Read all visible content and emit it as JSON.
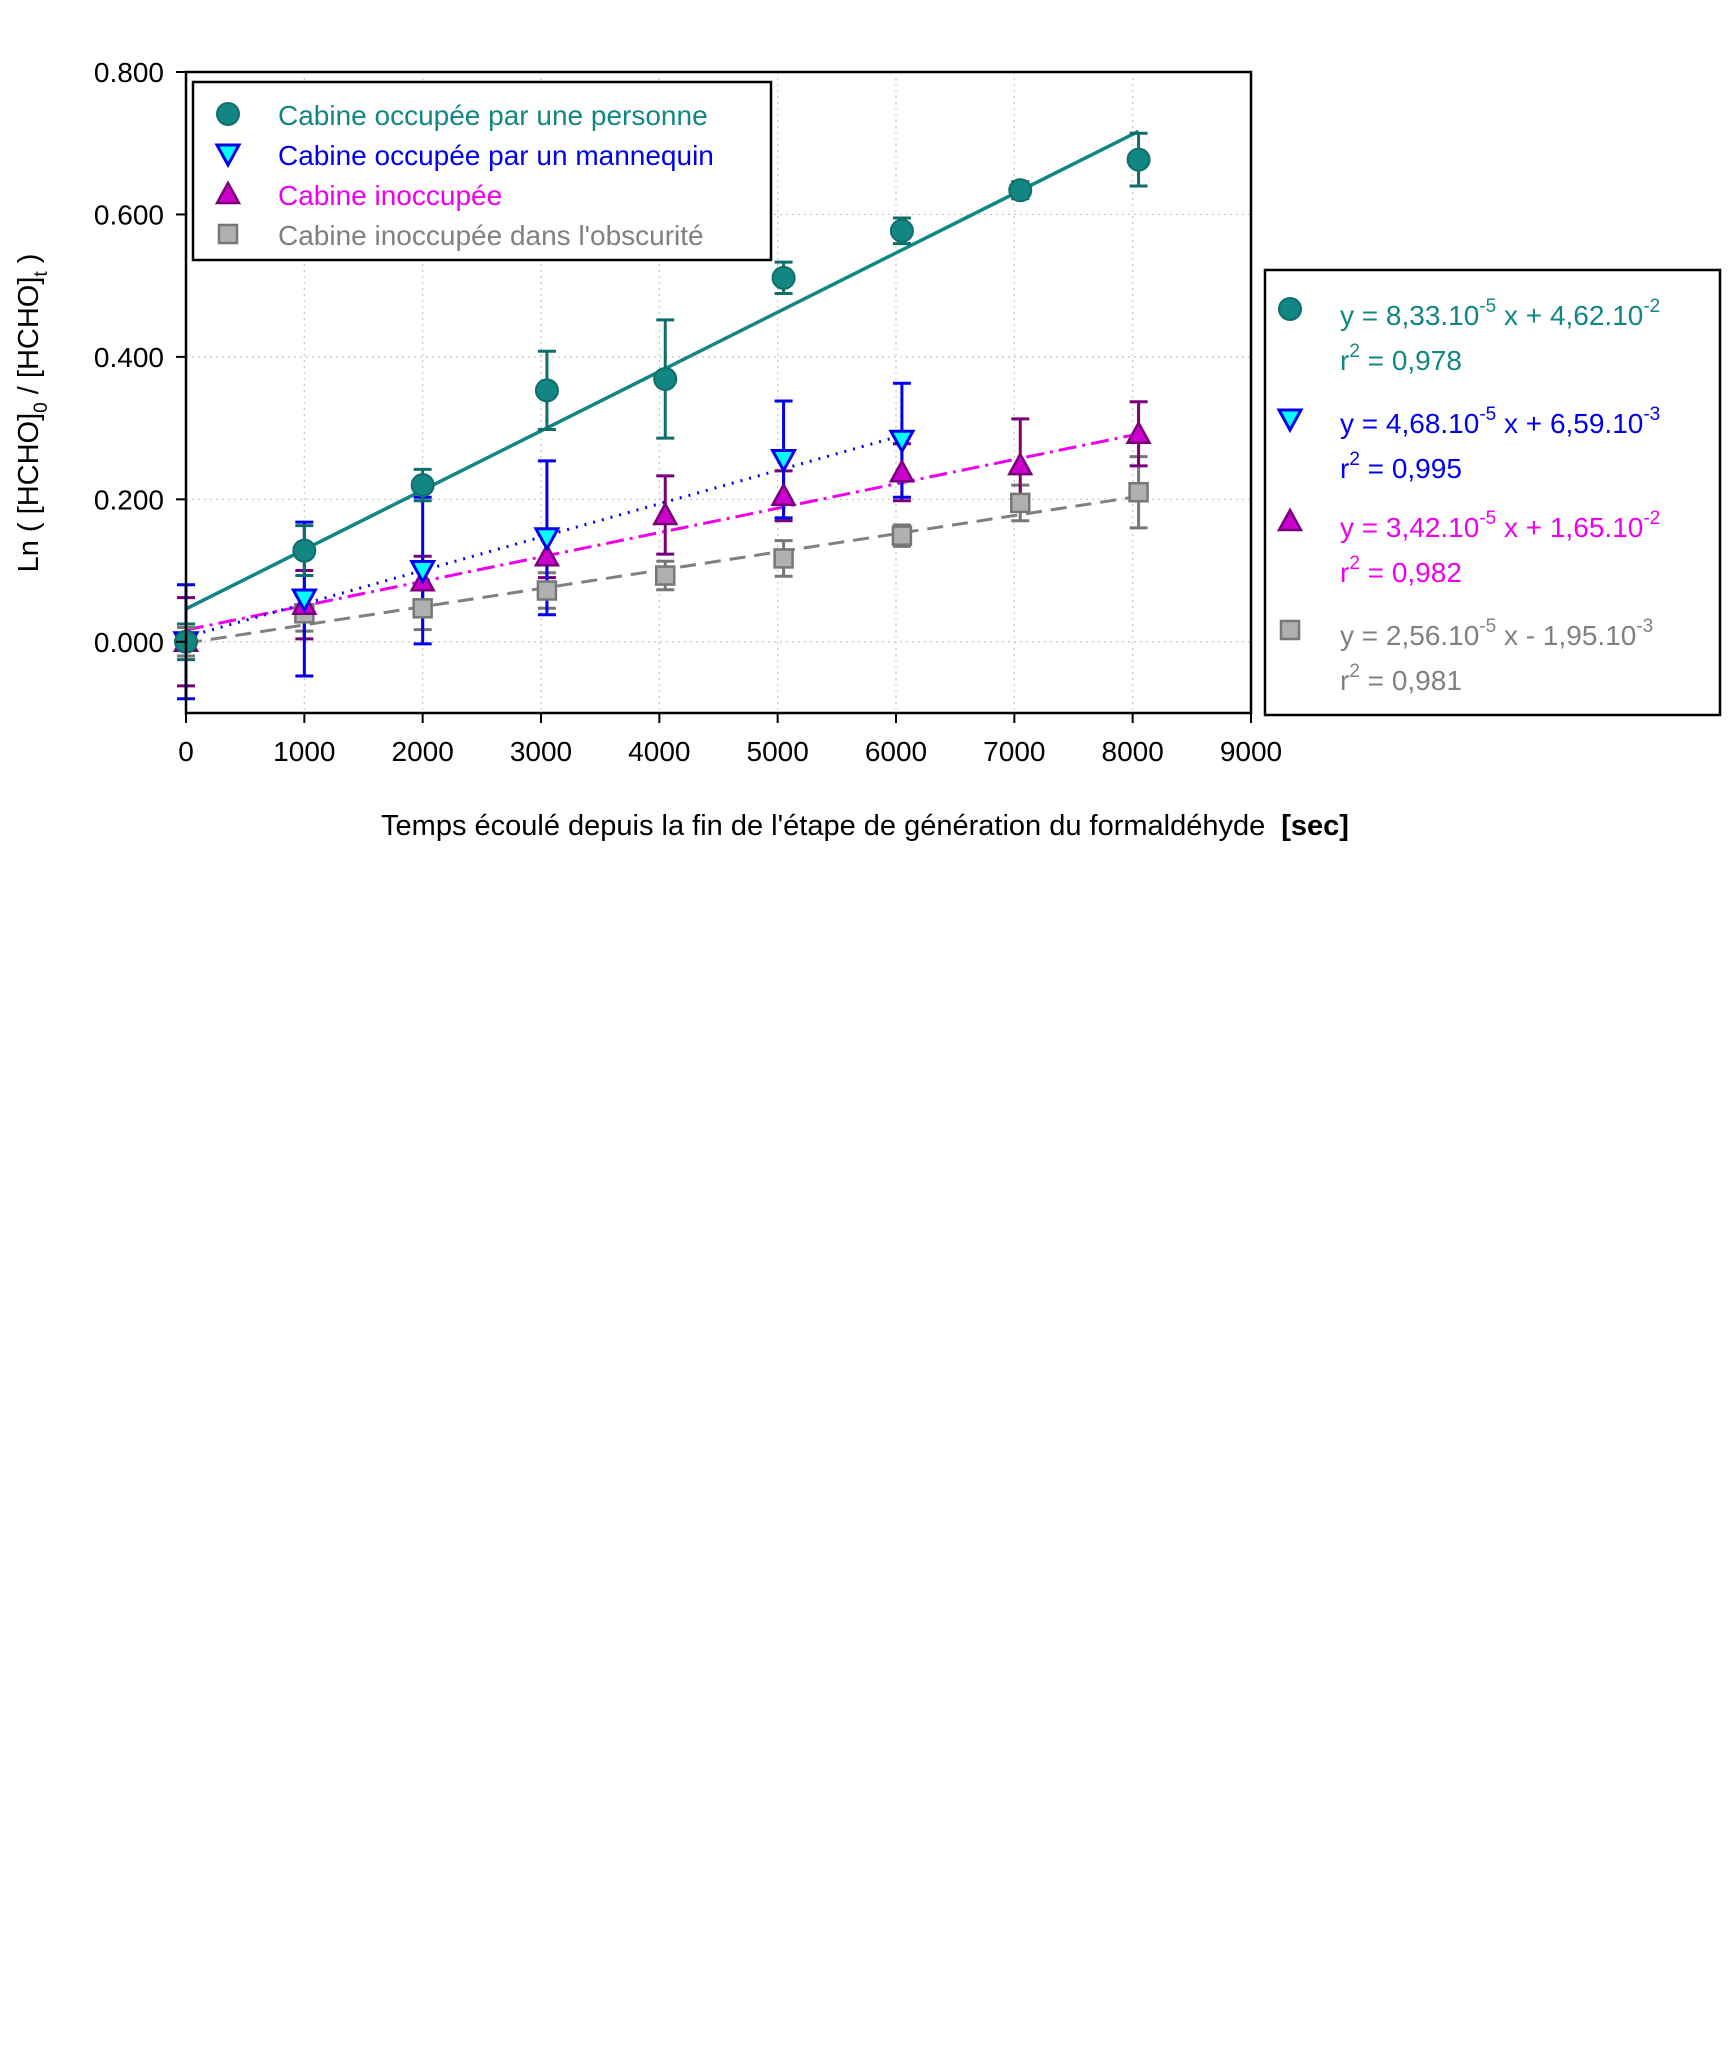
{
  "chart_data": {
    "type": "scatter",
    "xlabel": "Temps écoulé depuis la fin de l'étape de génération du formaldéhyde",
    "xlabel_unit": "[sec]",
    "ylabel_parts": [
      "Ln ( [HCHO]",
      "0",
      " / [HCHO]",
      "t",
      " )"
    ],
    "xlim": [
      0,
      9000
    ],
    "ylim": [
      -0.1,
      0.8
    ],
    "xticks": [
      "0",
      "1000",
      "2000",
      "3000",
      "4000",
      "5000",
      "6000",
      "7000",
      "8000",
      "9000"
    ],
    "yticks": [
      {
        "value": 0.0,
        "label": "0.000"
      },
      {
        "value": 0.2,
        "label": "0.200"
      },
      {
        "value": 0.4,
        "label": "0.400"
      },
      {
        "value": 0.6,
        "label": "0.600"
      },
      {
        "value": 0.8,
        "label": "0.800"
      }
    ],
    "grid": "dotted",
    "legend_position": "top-left",
    "series": [
      {
        "name": "Cabine occupée par une personne",
        "marker": "circle",
        "color": "#128683",
        "stroke": "#0f6e6b",
        "line_style": "solid",
        "x": [
          0,
          1000,
          2000,
          3050,
          4050,
          5050,
          6050,
          7050,
          8050
        ],
        "y": [
          0.0,
          0.128,
          0.22,
          0.353,
          0.369,
          0.511,
          0.577,
          0.634,
          0.677
        ],
        "err": [
          0.025,
          0.035,
          0.022,
          0.055,
          0.083,
          0.022,
          0.018,
          0.012,
          0.037
        ],
        "fit": {
          "slope": 8.33e-05,
          "intercept": 0.0462,
          "x_range": [
            0,
            8050
          ]
        },
        "equation": {
          "lead": "y = 8,33.10",
          "exp1": "-5",
          "mid": " x  + 4,62.10",
          "exp2": "-2",
          "r2_lead": "r",
          "r2_exp": "2",
          "r2_tail": " = 0,978"
        }
      },
      {
        "name": "Cabine occupée par un mannequin",
        "marker": "triangle-down",
        "color": "#00ffff",
        "stroke": "#0000ee",
        "line_style": "dotted",
        "x": [
          0,
          1000,
          2000,
          3050,
          5050,
          6050
        ],
        "y": [
          0.0,
          0.06,
          0.1,
          0.146,
          0.256,
          0.283
        ],
        "err": [
          0.08,
          0.108,
          0.103,
          0.108,
          0.082,
          0.08
        ],
        "fit": {
          "slope": 4.68e-05,
          "intercept": 0.00659,
          "x_range": [
            0,
            6050
          ]
        },
        "equation": {
          "lead": "y = 4,68.10",
          "exp1": "-5",
          "mid": " x  + 6,59.10",
          "exp2": "-3",
          "r2_lead": "r",
          "r2_exp": "2",
          "r2_tail": " = 0,995"
        }
      },
      {
        "name": "Cabine inoccupée",
        "marker": "triangle-up",
        "color": "#cc00cc",
        "stroke": "#7a007a",
        "line_style": "dash-dot",
        "x": [
          0,
          1000,
          2000,
          3050,
          4050,
          5050,
          6050,
          7050,
          8050
        ],
        "y": [
          0.0,
          0.052,
          0.085,
          0.12,
          0.178,
          0.205,
          0.238,
          0.248,
          0.292
        ],
        "err": [
          0.062,
          0.048,
          0.035,
          0.03,
          0.055,
          0.035,
          0.04,
          0.065,
          0.045
        ],
        "fit": {
          "slope": 3.42e-05,
          "intercept": 0.0165,
          "x_range": [
            0,
            8050
          ]
        },
        "equation": {
          "lead": "y = 3,42.10",
          "exp1": "-5",
          "mid": " x  + 1,65.10",
          "exp2": "-2",
          "r2_lead": "r",
          "r2_exp": "2",
          "r2_tail": " = 0,982"
        }
      },
      {
        "name": "Cabine inoccupée dans l'obscurité",
        "marker": "square",
        "color": "#b0b0b0",
        "stroke": "#777777",
        "line_style": "dashed",
        "x": [
          0,
          1000,
          2000,
          3050,
          4050,
          5050,
          6050,
          7050,
          8050
        ],
        "y": [
          0.0,
          0.04,
          0.047,
          0.072,
          0.093,
          0.117,
          0.149,
          0.195,
          0.21
        ],
        "err": [
          0.02,
          0.025,
          0.03,
          0.025,
          0.02,
          0.025,
          0.015,
          0.025,
          0.05
        ],
        "fit": {
          "slope": 2.56e-05,
          "intercept": -0.00195,
          "x_range": [
            0,
            8050
          ]
        },
        "equation": {
          "lead": "y = 2,56.10",
          "exp1": "-5",
          "mid": " x  - 1,95.10",
          "exp2": "-3",
          "r2_lead": "r",
          "r2_exp": "2",
          "r2_tail": " = 0,981"
        }
      }
    ]
  },
  "colors": {
    "axis": "#000000",
    "grid": "#c8c8c8",
    "text_teal": "#128683",
    "text_blue": "#0000ee",
    "text_magenta": "#ee00ee",
    "text_gray": "#808080"
  }
}
